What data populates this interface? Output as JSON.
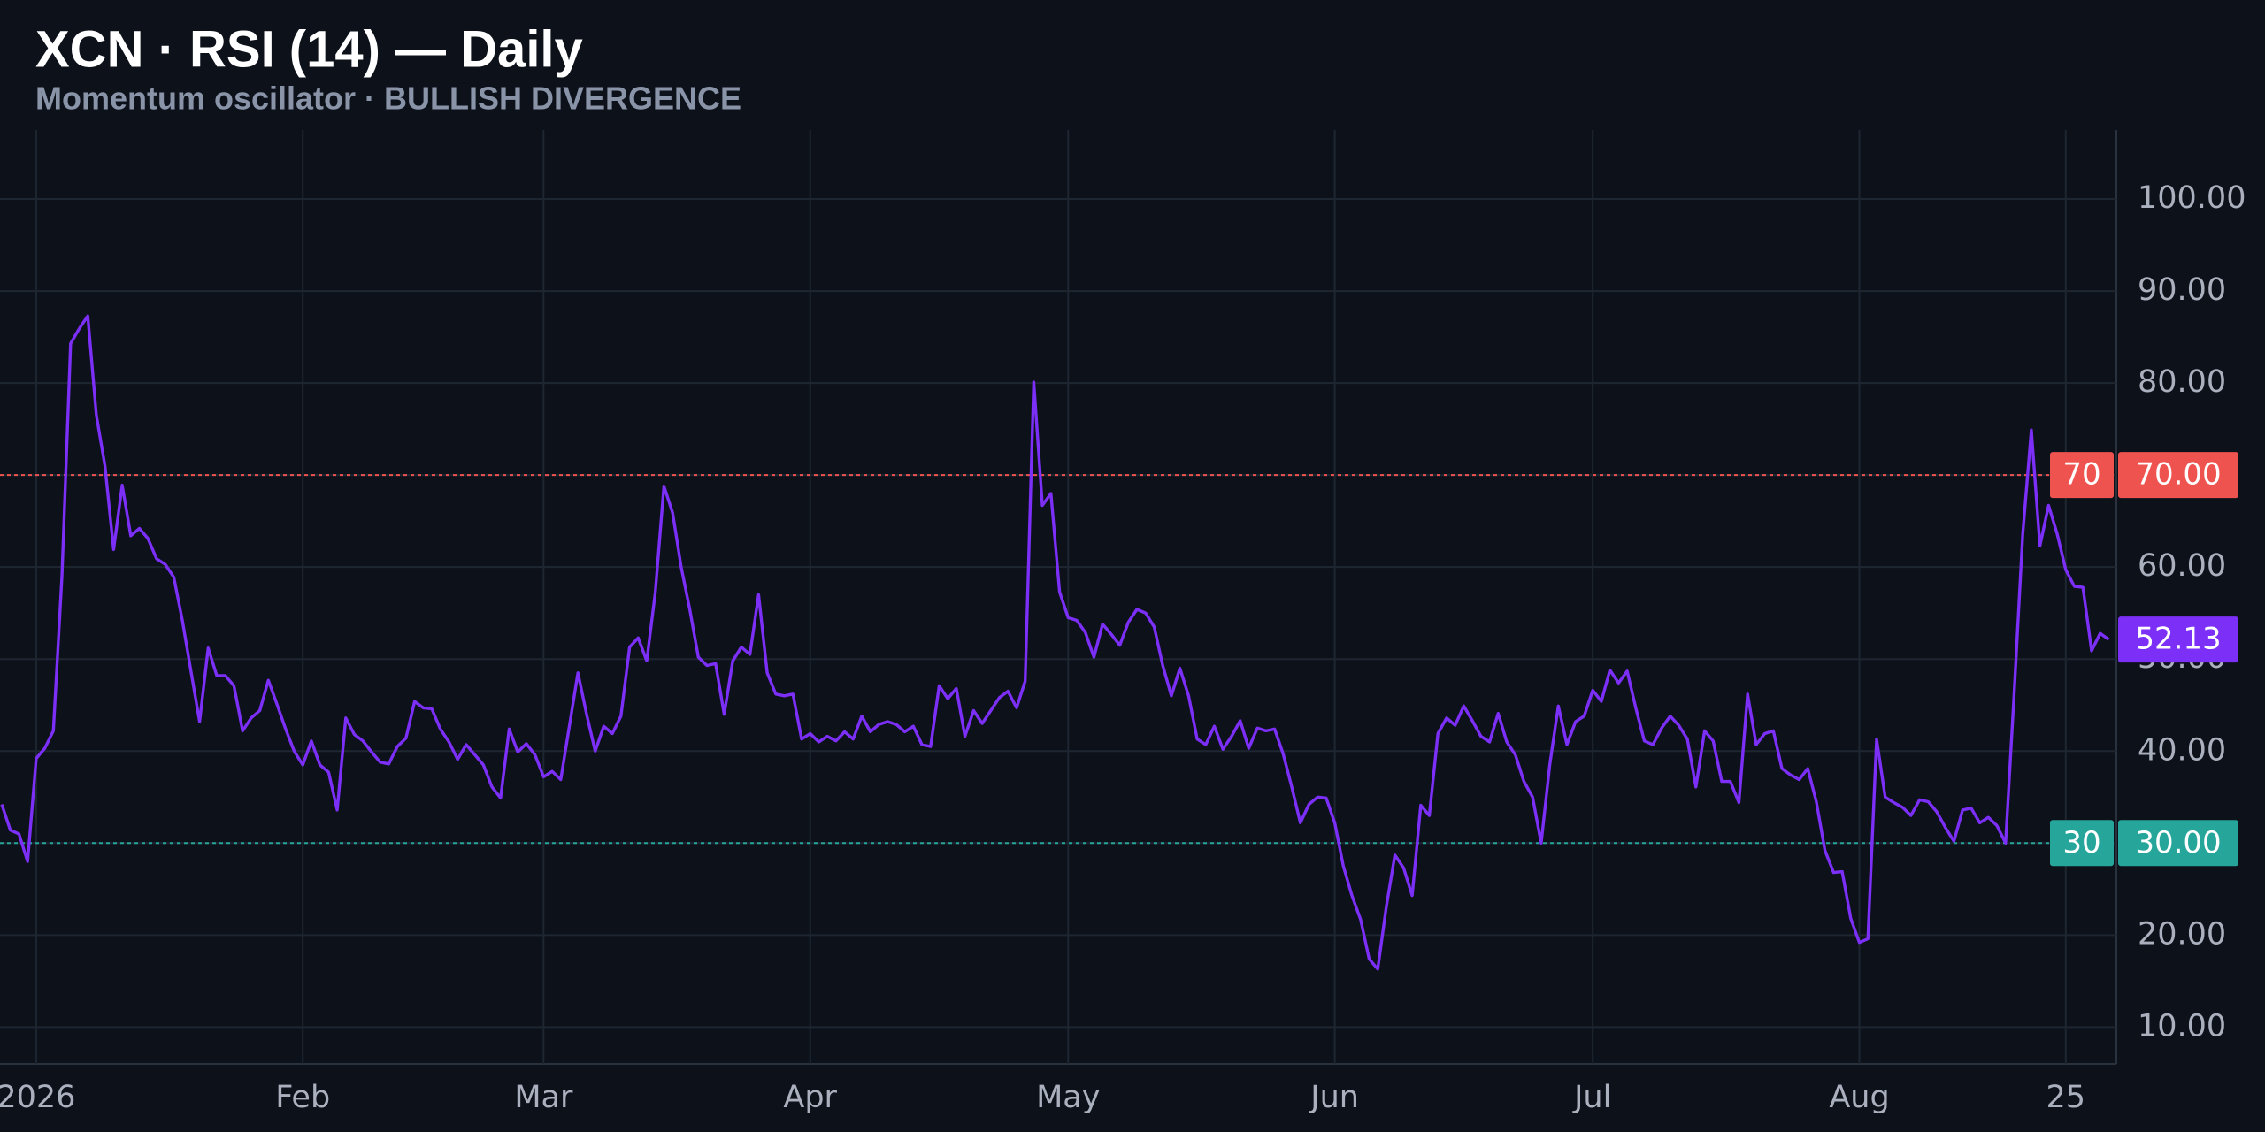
{
  "chart_data": {
    "type": "line",
    "title": "XCN · RSI (14) — Daily",
    "subtitle": "Momentum oscillator · BULLISH DIVERGENCE",
    "color": "#7b2ff7",
    "categories": [
      null,
      null,
      null,
      null,
      "2026",
      null,
      null,
      null,
      null,
      null,
      null,
      null,
      null,
      null,
      null,
      null,
      null,
      null,
      null,
      null,
      null,
      null,
      null,
      null,
      null,
      null,
      null,
      null,
      null,
      null,
      null,
      null,
      null,
      null,
      null,
      "Feb",
      null,
      null,
      null,
      null,
      null,
      null,
      null,
      null,
      null,
      null,
      null,
      null,
      null,
      null,
      null,
      null,
      null,
      null,
      null,
      null,
      null,
      null,
      null,
      null,
      null,
      null,
      null,
      "Mar",
      null,
      null,
      null,
      null,
      null,
      null,
      null,
      null,
      null,
      null,
      null,
      null,
      null,
      null,
      null,
      null,
      null,
      null,
      null,
      null,
      null,
      null,
      null,
      null,
      null,
      null,
      null,
      null,
      null,
      null,
      "Apr",
      null,
      null,
      null,
      null,
      null,
      null,
      null,
      null,
      null,
      null,
      null,
      null,
      null,
      null,
      null,
      null,
      null,
      null,
      null,
      null,
      null,
      null,
      null,
      null,
      null,
      null,
      null,
      null,
      null,
      "May",
      null,
      null,
      null,
      null,
      null,
      null,
      null,
      null,
      null,
      null,
      null,
      null,
      null,
      null,
      null,
      null,
      null,
      null,
      null,
      null,
      null,
      null,
      null,
      null,
      null,
      null,
      null,
      null,
      null,
      null,
      "Jun",
      null,
      null,
      null,
      null,
      null,
      null,
      null,
      null,
      null,
      null,
      null,
      null,
      null,
      null,
      null,
      null,
      null,
      null,
      null,
      null,
      null,
      null,
      null,
      null,
      null,
      null,
      null,
      null,
      null,
      "Jul",
      null,
      null,
      null,
      null,
      null,
      null,
      null,
      null,
      null,
      null,
      null,
      null,
      null,
      null,
      null,
      null,
      null,
      null,
      null,
      null,
      null,
      null,
      null,
      null,
      null,
      null,
      null,
      null,
      null,
      null,
      "Aug",
      null,
      null,
      null,
      null,
      null,
      null,
      null,
      null,
      null,
      null,
      null,
      null,
      null,
      null,
      null,
      null,
      null,
      null,
      null,
      null,
      null,
      null,
      null,
      "25",
      null,
      null,
      null,
      null,
      null
    ],
    "values": [
      34.2,
      31.4,
      31,
      28,
      39.2,
      40.3,
      42.2,
      59,
      84.3,
      85.9,
      87.3,
      76.5,
      71,
      61.9,
      68.9,
      63.4,
      64.2,
      63.1,
      60.9,
      60.3,
      58.9,
      54.2,
      48.7,
      43.2,
      51.2,
      48.2,
      48.2,
      47.1,
      42.2,
      43.6,
      44.4,
      47.7,
      45.1,
      42.4,
      40,
      38.5,
      41.1,
      38.5,
      37.7,
      33.6,
      43.6,
      41.8,
      41.1,
      39.9,
      38.8,
      38.6,
      40.5,
      41.4,
      45.4,
      44.7,
      44.6,
      42.4,
      41,
      39.1,
      40.7,
      39.6,
      38.5,
      36.1,
      34.9,
      42.4,
      39.9,
      40.8,
      39.6,
      37.2,
      37.8,
      36.9,
      42.7,
      48.5,
      44,
      40,
      42.7,
      41.9,
      43.8,
      51.3,
      52.3,
      49.8,
      57.3,
      68.8,
      65.9,
      60,
      55.4,
      50.2,
      49.3,
      49.5,
      44,
      49.8,
      51.3,
      50.5,
      57,
      48.5,
      46.2,
      46,
      46.2,
      41.3,
      41.9,
      41,
      41.6,
      41.1,
      42.1,
      41.3,
      43.8,
      42.1,
      42.9,
      43.2,
      42.9,
      42.1,
      42.7,
      40.7,
      40.5,
      47.1,
      45.7,
      46.8,
      41.6,
      44.4,
      43,
      44.4,
      45.8,
      46.5,
      44.7,
      47.6,
      80.1,
      66.7,
      68,
      57.3,
      54.5,
      54.2,
      52.9,
      50.2,
      53.8,
      52.7,
      51.5,
      54,
      55.4,
      55,
      53.5,
      49.3,
      46,
      49,
      46,
      41.3,
      40.7,
      42.7,
      40.2,
      41.6,
      43.3,
      40.3,
      42.5,
      42.2,
      42.4,
      39.7,
      36.1,
      32.2,
      34.2,
      35,
      34.9,
      32.2,
      27.5,
      24.3,
      21.7,
      17.4,
      16.3,
      23.1,
      28.7,
      27.3,
      24.3,
      34.1,
      33,
      41.9,
      43.6,
      42.8,
      44.9,
      43.3,
      41.6,
      41,
      44.1,
      41,
      39.6,
      36.7,
      35,
      30,
      38.5,
      44.9,
      40.7,
      43.2,
      43.8,
      46.6,
      45.4,
      48.8,
      47.4,
      48.7,
      44.7,
      41.1,
      40.7,
      42.5,
      43.8,
      42.8,
      41.3,
      36.1,
      42.2,
      41.1,
      36.7,
      36.7,
      34.4,
      46.2,
      40.7,
      41.9,
      42.2,
      38.1,
      37.4,
      36.9,
      38.1,
      34.5,
      29.2,
      26.8,
      26.9,
      21.8,
      19.2,
      19.6,
      41.3,
      35,
      34.4,
      33.9,
      33,
      34.7,
      34.5,
      33.4,
      31.7,
      30.2,
      33.6,
      33.8,
      32.2,
      32.8,
      31.9,
      30,
      46.3,
      63.6,
      74.9,
      62.3,
      66.7,
      63.6,
      59.7,
      57.9,
      57.8,
      50.9,
      52.8,
      52.13
    ],
    "ylim": [
      6,
      107.5
    ],
    "yticks": [
      {
        "value": 10,
        "label": "10.00"
      },
      {
        "value": 20,
        "label": "20.00"
      },
      {
        "value": 30,
        "label": "30.00"
      },
      {
        "value": 40,
        "label": "40.00"
      },
      {
        "value": 50,
        "label": "50.00"
      },
      {
        "value": 60,
        "label": "60.00"
      },
      {
        "value": 70,
        "label": "70.00"
      },
      {
        "value": 80,
        "label": "80.00"
      },
      {
        "value": 90,
        "label": "90.00"
      },
      {
        "value": 100,
        "label": "100.00"
      }
    ],
    "levels": [
      {
        "value": 70,
        "label": "70.00",
        "color": "#ef5350"
      },
      {
        "value": 30,
        "label": "30.00",
        "color": "#26a69a"
      }
    ],
    "grid": true
  }
}
